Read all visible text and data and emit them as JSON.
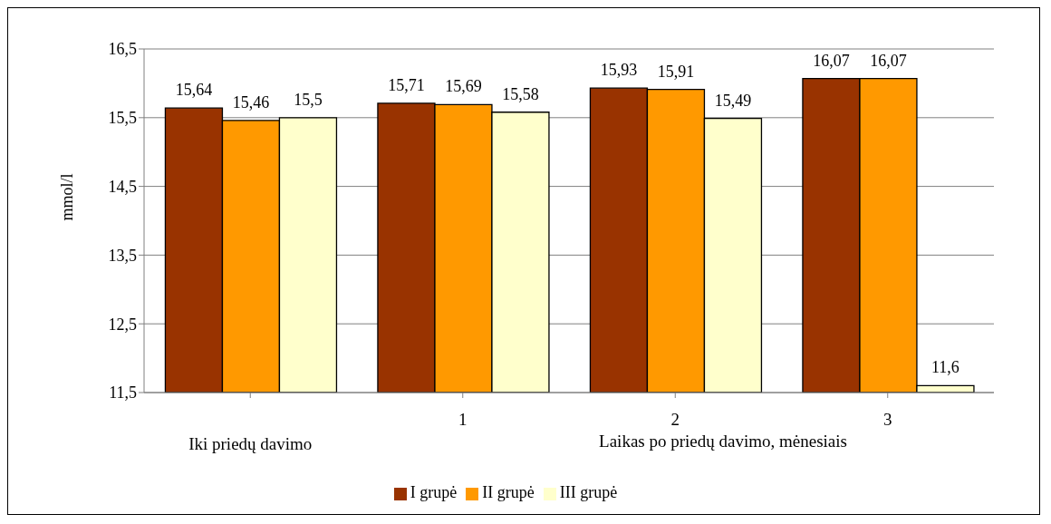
{
  "chart_data": {
    "type": "bar",
    "ylabel": "mmol/l",
    "xlabel": "Laikas po priedų davimo, mėnesiais",
    "categories": [
      "Iki priedų davimo",
      "1",
      "2",
      "3"
    ],
    "series": [
      {
        "name": "I grupė",
        "color": "#993300",
        "values": [
          15.64,
          15.71,
          15.93,
          16.07
        ],
        "value_labels": [
          "15,64",
          "15,71",
          "15,93",
          "16,07"
        ]
      },
      {
        "name": "II grupė",
        "color": "#ff9900",
        "values": [
          15.46,
          15.69,
          15.91,
          16.07
        ],
        "value_labels": [
          "15,46",
          "15,69",
          "15,91",
          "16,07"
        ]
      },
      {
        "name": "III grupė",
        "color": "#ffffcc",
        "values": [
          15.5,
          15.58,
          15.49,
          11.6
        ],
        "value_labels": [
          "15,5",
          "15,58",
          "15,49",
          "11,6"
        ]
      }
    ],
    "ylim": [
      11.5,
      16.5
    ],
    "yticks": [
      {
        "value": 11.5,
        "label": "11,5"
      },
      {
        "value": 12.5,
        "label": "12,5"
      },
      {
        "value": 13.5,
        "label": "13,5"
      },
      {
        "value": 14.5,
        "label": "14,5"
      },
      {
        "value": 15.5,
        "label": "15,5"
      },
      {
        "value": 16.5,
        "label": "16,5"
      }
    ],
    "grid": "y",
    "legend": "bottom"
  }
}
